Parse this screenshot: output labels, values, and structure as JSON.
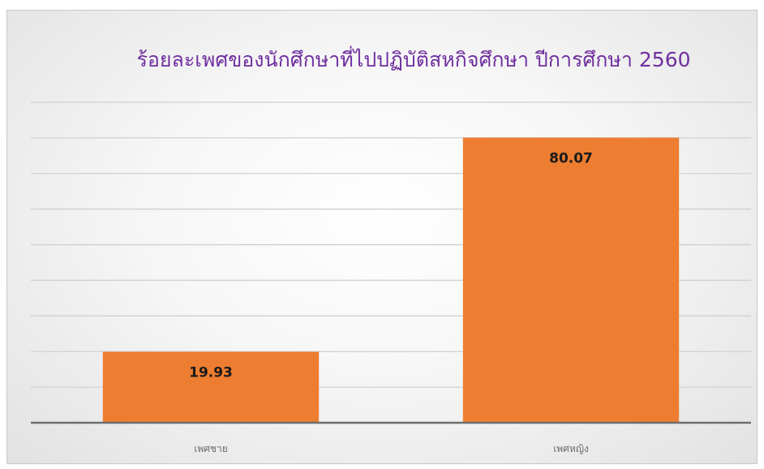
{
  "chart_data": {
    "type": "bar",
    "title": "ร้อยละเพศของนักศึกษาที่ไปปฏิบัติสหกิจศึกษา ปีการศึกษา 2560",
    "categories": [
      "เพศชาย",
      "เพศหญิง"
    ],
    "values": [
      19.93,
      80.07
    ],
    "value_labels": [
      "19.93",
      "80.07"
    ],
    "ylim": [
      0,
      90
    ],
    "grid": true,
    "legend": "none",
    "bar_color": "#ed7d31",
    "title_color": "#7030a0"
  }
}
